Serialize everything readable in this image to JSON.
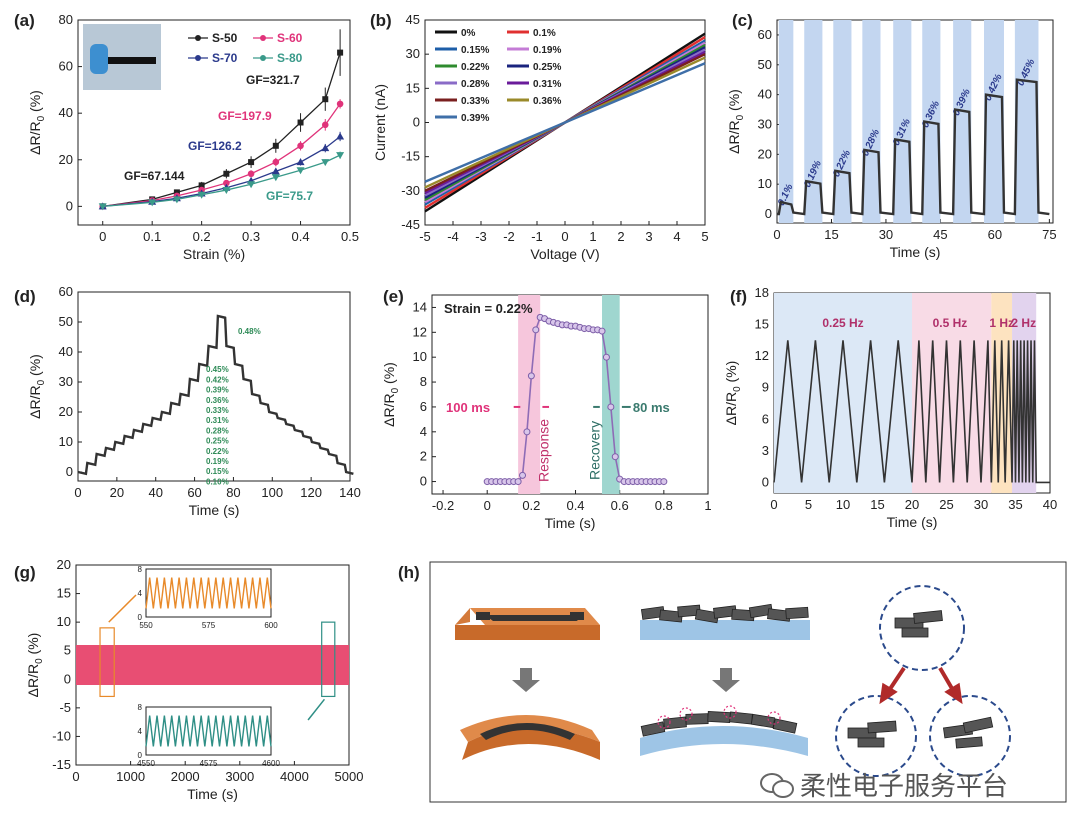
{
  "figure": "multi-panel strain sensor figure",
  "watermark": "柔性电子服务平台",
  "colors": {
    "axis": "#222222",
    "black": "#222222",
    "pink": "#e0337a",
    "navy": "#2b3a8c",
    "teal": "#3a9a8a",
    "purple_marker": "#a98cc6",
    "blue_band": "#c3d6f0",
    "orange": "#e88a2a",
    "red": "#c0304a"
  },
  "chart_data": [
    {
      "id": "a",
      "panel": "(a)",
      "type": "line",
      "xlabel": "Strain (%)",
      "ylabel": "ΔR/R0 (%)",
      "xlim": [
        -0.05,
        0.5
      ],
      "ylim": [
        -8,
        80
      ],
      "xticks": [
        0.0,
        0.1,
        0.2,
        0.3,
        0.4,
        0.5
      ],
      "yticks": [
        0,
        20,
        40,
        60,
        80
      ],
      "x": [
        0,
        0.1,
        0.15,
        0.2,
        0.25,
        0.3,
        0.35,
        0.4,
        0.45,
        0.48
      ],
      "series": [
        {
          "name": "S-50",
          "marker": "square",
          "color": "#222222",
          "values": [
            0,
            3,
            6,
            9,
            14,
            19,
            26,
            36,
            46,
            66
          ],
          "errors": [
            0.8,
            1,
            1.2,
            1.5,
            2,
            2.5,
            3,
            4,
            5,
            10
          ]
        },
        {
          "name": "S-60",
          "marker": "circle",
          "color": "#e0337a",
          "values": [
            0,
            2.5,
            4.5,
            7,
            10,
            14,
            19,
            26,
            35,
            44
          ],
          "errors": [
            0.5,
            0.6,
            0.8,
            1,
            1.2,
            1.5,
            1.8,
            2,
            2.5,
            2
          ]
        },
        {
          "name": "S-70",
          "marker": "triangle",
          "color": "#2b3a8c",
          "values": [
            0,
            2,
            3.5,
            5.5,
            8,
            11,
            15,
            19,
            25,
            30
          ],
          "errors": [
            0.4,
            0.5,
            0.6,
            0.8,
            1,
            1,
            1.2,
            1.5,
            1.8,
            2
          ]
        },
        {
          "name": "S-80",
          "marker": "triangle-down",
          "color": "#3a9a8a",
          "values": [
            0,
            1.7,
            3,
            5,
            7,
            9.5,
            12.5,
            15.5,
            19,
            22
          ],
          "errors": [
            0.4,
            0.4,
            0.5,
            0.6,
            0.8,
            0.8,
            1,
            1,
            1.2,
            1.5
          ]
        }
      ],
      "annotations": [
        {
          "text": "GF=321.7",
          "color": "#222222"
        },
        {
          "text": "GF=197.9",
          "color": "#e0337a"
        },
        {
          "text": "GF=126.2",
          "color": "#2b3a8c"
        },
        {
          "text": "GF=67.144",
          "color": "#222222"
        },
        {
          "text": "GF=75.7",
          "color": "#3a9a8a"
        }
      ]
    },
    {
      "id": "b",
      "panel": "(b)",
      "type": "line",
      "xlabel": "Voltage (V)",
      "ylabel": "Current (nA)",
      "xlim": [
        -5,
        5
      ],
      "ylim": [
        -45,
        45
      ],
      "xticks": [
        -5,
        -4,
        -3,
        -2,
        -1,
        0,
        1,
        2,
        3,
        4,
        5
      ],
      "yticks": [
        -45,
        -30,
        -15,
        0,
        15,
        30,
        45
      ],
      "series": [
        {
          "name": "0%",
          "color": "#111111",
          "slope": 7.8
        },
        {
          "name": "0.1%",
          "color": "#e03030",
          "slope": 7.5
        },
        {
          "name": "0.15%",
          "color": "#1d5ea8",
          "slope": 7.2
        },
        {
          "name": "0.19%",
          "color": "#c47cd6",
          "slope": 7.0
        },
        {
          "name": "0.22%",
          "color": "#2e8b2e",
          "slope": 6.8
        },
        {
          "name": "0.25%",
          "color": "#1a237e",
          "slope": 6.6
        },
        {
          "name": "0.28%",
          "color": "#8a6bc7",
          "slope": 6.4
        },
        {
          "name": "0.31%",
          "color": "#6a1b9a",
          "slope": 6.2
        },
        {
          "name": "0.33%",
          "color": "#7a1f1f",
          "slope": 6.0
        },
        {
          "name": "0.36%",
          "color": "#9a8a2a",
          "slope": 5.7
        },
        {
          "name": "0.39%",
          "color": "#3f6fa8",
          "slope": 5.2
        }
      ]
    },
    {
      "id": "c",
      "panel": "(c)",
      "type": "line",
      "xlabel": "Time (s)",
      "ylabel": "ΔR/R0 (%)",
      "xlim": [
        0,
        76
      ],
      "ylim": [
        -3,
        65
      ],
      "xticks": [
        0,
        15,
        30,
        45,
        60,
        75
      ],
      "yticks": [
        0,
        10,
        20,
        30,
        40,
        50,
        60
      ],
      "steps": [
        {
          "strain": "0.1%",
          "start": 0.5,
          "end": 4.5,
          "value": 4
        },
        {
          "strain": "0.19%",
          "start": 7.5,
          "end": 12.5,
          "value": 11
        },
        {
          "strain": "0.22%",
          "start": 15.5,
          "end": 20.5,
          "value": 14.5
        },
        {
          "strain": "0.28%",
          "start": 23.5,
          "end": 28.5,
          "value": 21.5
        },
        {
          "strain": "0.31%",
          "start": 32,
          "end": 37,
          "value": 25
        },
        {
          "strain": "0.36%",
          "start": 40,
          "end": 45,
          "value": 31
        },
        {
          "strain": "0.39%",
          "start": 48.5,
          "end": 53.5,
          "value": 35
        },
        {
          "strain": "0.42%",
          "start": 57,
          "end": 62.5,
          "value": 40
        },
        {
          "strain": "0.45%",
          "start": 65.5,
          "end": 72,
          "value": 45
        }
      ]
    },
    {
      "id": "d",
      "panel": "(d)",
      "type": "line",
      "xlabel": "Time (s)",
      "ylabel": "ΔR/R0 (%)",
      "xlim": [
        0,
        140
      ],
      "ylim": [
        -3,
        60
      ],
      "xticks": [
        0,
        20,
        40,
        60,
        80,
        100,
        120,
        140
      ],
      "yticks": [
        0,
        10,
        20,
        30,
        40,
        50,
        60
      ],
      "levels": [
        0,
        3,
        6,
        8,
        10,
        12,
        14,
        16,
        18,
        20,
        23,
        26,
        31,
        36,
        42,
        52
      ],
      "strain_labels": [
        "0.48%",
        "0.45%",
        "0.42%",
        "0.39%",
        "0.36%",
        "0.33%",
        "0.31%",
        "0.28%",
        "0.25%",
        "0.22%",
        "0.19%",
        "0.15%",
        "0.10%"
      ]
    },
    {
      "id": "e",
      "panel": "(e)",
      "type": "line",
      "xlabel": "Time (s)",
      "ylabel": "ΔR/R0 (%)",
      "xlim": [
        -0.25,
        1.0
      ],
      "ylim": [
        -1,
        15
      ],
      "xticks": [
        -0.2,
        0.0,
        0.2,
        0.4,
        0.6,
        0.8,
        1.0
      ],
      "yticks": [
        0,
        2,
        4,
        6,
        8,
        10,
        12,
        14
      ],
      "title": "Strain = 0.22%",
      "response_time": "100 ms",
      "recovery_time": "80 ms",
      "response_label": "Response",
      "recovery_label": "Recovery",
      "points": [
        [
          0,
          0
        ],
        [
          0.02,
          0
        ],
        [
          0.04,
          0
        ],
        [
          0.06,
          0
        ],
        [
          0.08,
          0
        ],
        [
          0.1,
          0
        ],
        [
          0.12,
          0
        ],
        [
          0.14,
          0
        ],
        [
          0.16,
          0.5
        ],
        [
          0.18,
          4
        ],
        [
          0.2,
          8.5
        ],
        [
          0.22,
          12.2
        ],
        [
          0.24,
          13.2
        ],
        [
          0.26,
          13.1
        ],
        [
          0.28,
          12.9
        ],
        [
          0.3,
          12.8
        ],
        [
          0.32,
          12.7
        ],
        [
          0.34,
          12.6
        ],
        [
          0.36,
          12.6
        ],
        [
          0.38,
          12.5
        ],
        [
          0.4,
          12.5
        ],
        [
          0.42,
          12.4
        ],
        [
          0.44,
          12.3
        ],
        [
          0.46,
          12.3
        ],
        [
          0.48,
          12.2
        ],
        [
          0.5,
          12.2
        ],
        [
          0.52,
          12.1
        ],
        [
          0.54,
          10
        ],
        [
          0.56,
          6
        ],
        [
          0.58,
          2
        ],
        [
          0.6,
          0.2
        ],
        [
          0.62,
          0
        ],
        [
          0.64,
          0
        ],
        [
          0.66,
          0
        ],
        [
          0.68,
          0
        ],
        [
          0.7,
          0
        ],
        [
          0.72,
          0
        ],
        [
          0.74,
          0
        ],
        [
          0.76,
          0
        ],
        [
          0.78,
          0
        ],
        [
          0.8,
          0
        ]
      ]
    },
    {
      "id": "f",
      "panel": "(f)",
      "type": "line",
      "xlabel": "Time (s)",
      "ylabel": "ΔR/R0 (%)",
      "xlim": [
        0,
        40
      ],
      "ylim": [
        -1,
        18
      ],
      "xticks": [
        0,
        5,
        10,
        15,
        20,
        25,
        30,
        35,
        40
      ],
      "yticks": [
        0,
        3,
        6,
        9,
        12,
        15,
        18
      ],
      "segments": [
        {
          "label": "0.25 Hz",
          "start": 0,
          "end": 20,
          "freq": 0.25,
          "color": "#dce8f6"
        },
        {
          "label": "0.5 Hz",
          "start": 20,
          "end": 31.5,
          "freq": 0.5,
          "color": "#f8dbe6"
        },
        {
          "label": "1 Hz",
          "start": 31.5,
          "end": 34.5,
          "freq": 1,
          "color": "#fde3c0"
        },
        {
          "label": "2 Hz",
          "start": 34.5,
          "end": 38,
          "freq": 2,
          "color": "#e2d3ee"
        }
      ],
      "peak": 13.5
    },
    {
      "id": "g",
      "panel": "(g)",
      "type": "area",
      "xlabel": "Time (s)",
      "ylabel": "ΔR/R0 (%)",
      "xlim": [
        0,
        5000
      ],
      "ylim": [
        -15,
        20
      ],
      "xticks": [
        0,
        1000,
        2000,
        3000,
        4000,
        5000
      ],
      "yticks": [
        -15,
        -10,
        -5,
        0,
        5,
        10,
        15,
        20
      ],
      "band": [
        -1,
        6
      ],
      "insets": [
        {
          "xlim": [
            550,
            600
          ],
          "xticks": [
            550,
            575,
            600
          ],
          "yticks": [
            0,
            4,
            8
          ],
          "color": "#e88a2a"
        },
        {
          "xlim": [
            4550,
            4600
          ],
          "xticks": [
            4550,
            4575,
            4600
          ],
          "yticks": [
            0,
            4,
            8
          ],
          "color": "#2f8f86"
        }
      ]
    }
  ],
  "panel_h": {
    "panel": "(h)"
  }
}
